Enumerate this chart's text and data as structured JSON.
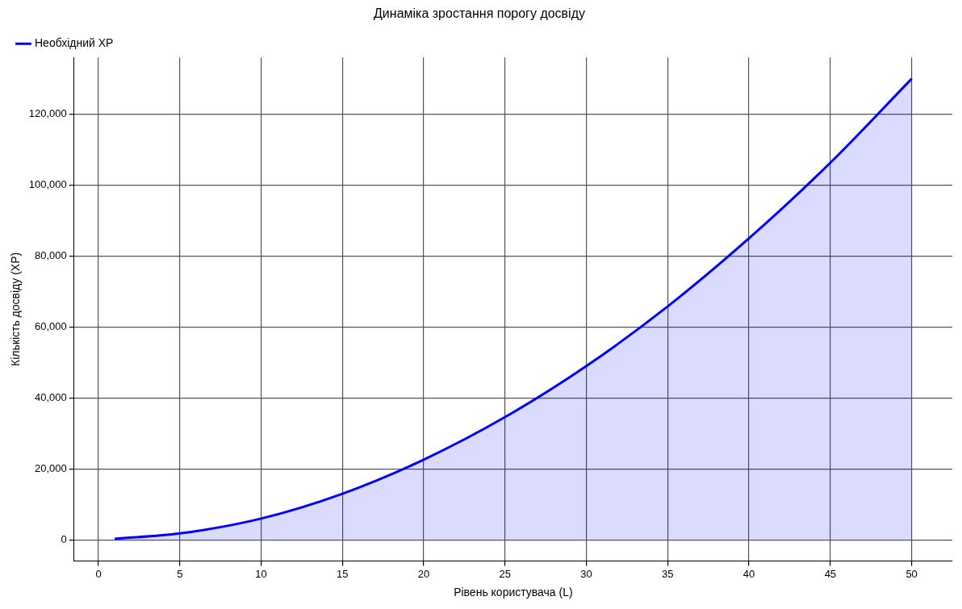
{
  "chart_data": {
    "type": "area",
    "title": "Динаміка зростання порогу досвіду",
    "xlabel": "Рівень користувача (L)",
    "ylabel": "Кількість досвіду (XP)",
    "x": [
      1,
      5,
      10,
      15,
      20,
      25,
      30,
      35,
      40,
      45,
      50
    ],
    "series": [
      {
        "name": "Необхідний XP",
        "color": "#0000ff",
        "values": [
          300,
          1800,
          6000,
          13000,
          22600,
          34600,
          49000,
          65800,
          85000,
          106300,
          130000
        ]
      }
    ],
    "xlim": [
      -1.5,
      52.5
    ],
    "xticks": [
      0,
      5,
      10,
      15,
      20,
      25,
      30,
      35,
      40,
      45,
      50
    ],
    "ylim": [
      -6000,
      136000
    ],
    "yticks": [
      {
        "value": 0,
        "label": "0"
      },
      {
        "value": 20000,
        "label": "20,000"
      },
      {
        "value": 40000,
        "label": "40,000"
      },
      {
        "value": 60000,
        "label": "60,000"
      },
      {
        "value": 80000,
        "label": "80,000"
      },
      {
        "value": 100000,
        "label": "100,000"
      },
      {
        "value": 120000,
        "label": "120,000"
      }
    ],
    "grid": true,
    "line_style": "solid",
    "marker": "none",
    "legend": "top left"
  }
}
